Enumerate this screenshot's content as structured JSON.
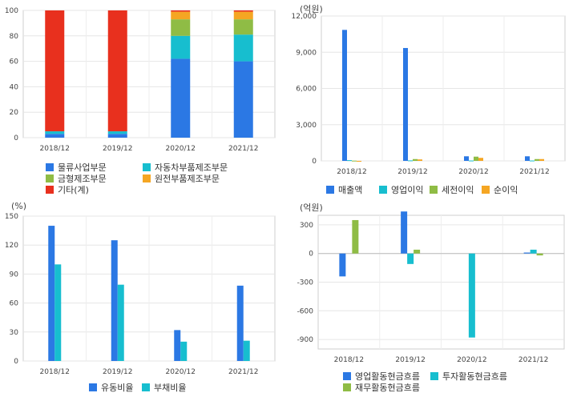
{
  "chart_data": [
    {
      "id": "p1",
      "type": "bar",
      "stacked": true,
      "categories": [
        "2018/12",
        "2019/12",
        "2020/12",
        "2021/12"
      ],
      "yticks": [
        0,
        20,
        40,
        60,
        80,
        100
      ],
      "ylim": [
        0,
        100
      ],
      "unit": "",
      "series": [
        {
          "name": "물류사업부문",
          "color": "#2b78e4",
          "values": [
            3,
            3,
            62,
            60
          ]
        },
        {
          "name": "자동차부품제조부문",
          "color": "#17becf",
          "values": [
            2,
            2,
            18,
            21
          ]
        },
        {
          "name": "금형제조부문",
          "color": "#8fbc45",
          "values": [
            0,
            0,
            13,
            12
          ]
        },
        {
          "name": "원전부품제조부문",
          "color": "#f5a623",
          "values": [
            0,
            0,
            6,
            6
          ]
        },
        {
          "name": "기타(계)",
          "color": "#e8301e",
          "values": [
            95,
            95,
            1,
            1
          ]
        }
      ]
    },
    {
      "id": "p2",
      "type": "bar",
      "categories": [
        "2018/12",
        "2019/12",
        "2020/12",
        "2021/12"
      ],
      "yticks": [
        0,
        3000,
        6000,
        9000,
        12000
      ],
      "yticklabels": [
        "0",
        "3,000",
        "6,000",
        "9,000",
        "12,000"
      ],
      "ylim": [
        0,
        12000
      ],
      "unit": "(억원)",
      "series": [
        {
          "name": "매출액",
          "color": "#2b78e4",
          "values": [
            10850,
            9350,
            380,
            380
          ]
        },
        {
          "name": "영업이익",
          "color": "#17becf",
          "values": [
            60,
            40,
            30,
            30
          ]
        },
        {
          "name": "세전이익",
          "color": "#8fbc45",
          "values": [
            20,
            150,
            350,
            150
          ]
        },
        {
          "name": "순이익",
          "color": "#f5a623",
          "values": [
            -50,
            120,
            250,
            150
          ]
        }
      ]
    },
    {
      "id": "p3",
      "type": "bar",
      "categories": [
        "2018/12",
        "2019/12",
        "2020/12",
        "2021/12"
      ],
      "yticks": [
        0,
        30,
        60,
        90,
        120,
        150
      ],
      "ylim": [
        0,
        150
      ],
      "unit": "(%)",
      "series": [
        {
          "name": "유동비율",
          "color": "#2b78e4",
          "values": [
            140,
            125,
            32,
            78
          ]
        },
        {
          "name": "부채비율",
          "color": "#17becf",
          "values": [
            100,
            79,
            20,
            21
          ]
        }
      ]
    },
    {
      "id": "p4",
      "type": "bar",
      "categories": [
        "2018/12",
        "2019/12",
        "2020/12",
        "2021/12"
      ],
      "yticks": [
        -900,
        -600,
        -300,
        0,
        300
      ],
      "ylim": [
        -1000,
        400
      ],
      "unit": "(억원)",
      "series": [
        {
          "name": "영업활동현금흐름",
          "color": "#2b78e4",
          "values": [
            -240,
            440,
            0,
            10
          ]
        },
        {
          "name": "투자활동현금흐름",
          "color": "#17becf",
          "values": [
            0,
            -110,
            -880,
            40
          ]
        },
        {
          "name": "재무활동현금흐름",
          "color": "#8fbc45",
          "values": [
            350,
            40,
            0,
            -20
          ]
        }
      ]
    }
  ]
}
